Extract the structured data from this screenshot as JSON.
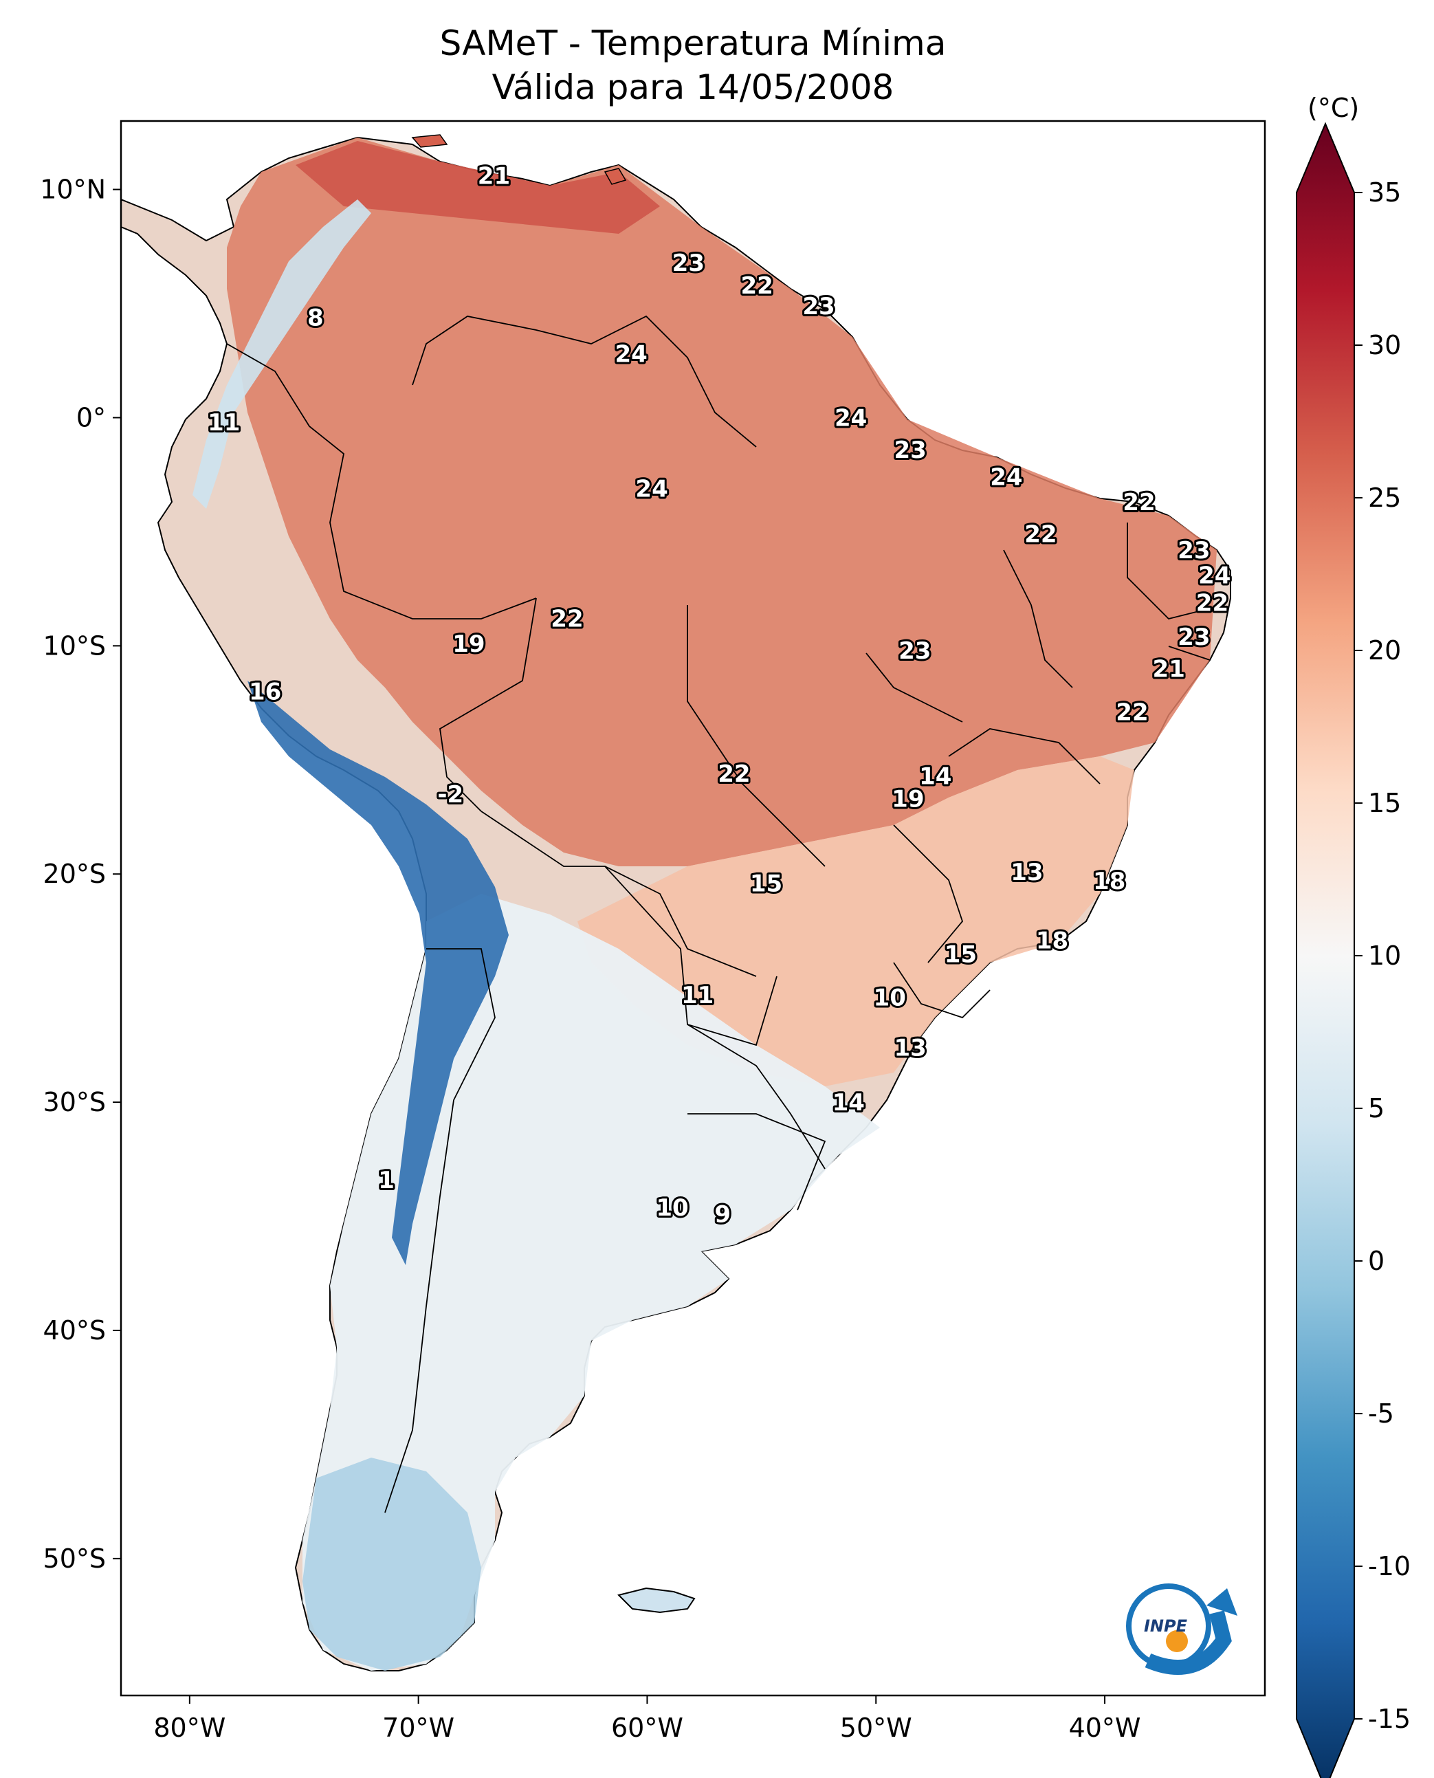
{
  "title": {
    "line1": "SAMeT - Temperatura Mínima",
    "line2": "Válida para 14/05/2008"
  },
  "map": {
    "lon_range": [
      -83,
      -33
    ],
    "lat_range": [
      -56,
      13
    ],
    "lon_ticks": [
      {
        "value": -80,
        "label": "80°W"
      },
      {
        "value": -70,
        "label": "70°W"
      },
      {
        "value": -60,
        "label": "60°W"
      },
      {
        "value": -50,
        "label": "50°W"
      },
      {
        "value": -40,
        "label": "40°W"
      }
    ],
    "lat_ticks": [
      {
        "value": 10,
        "label": "10°N"
      },
      {
        "value": 0,
        "label": "0°"
      },
      {
        "value": -10,
        "label": "10°S"
      },
      {
        "value": -20,
        "label": "20°S"
      },
      {
        "value": -30,
        "label": "30°S"
      },
      {
        "value": -40,
        "label": "40°S"
      },
      {
        "value": -50,
        "label": "50°S"
      }
    ],
    "station_labels": [
      {
        "value": "21",
        "lon": -66.7,
        "lat": 10.6
      },
      {
        "value": "8",
        "lon": -74.5,
        "lat": 4.4
      },
      {
        "value": "11",
        "lon": -78.5,
        "lat": -0.2
      },
      {
        "value": "23",
        "lon": -58.2,
        "lat": 6.8
      },
      {
        "value": "22",
        "lon": -55.2,
        "lat": 5.8
      },
      {
        "value": "23",
        "lon": -52.5,
        "lat": 4.9
      },
      {
        "value": "24",
        "lon": -60.7,
        "lat": 2.8
      },
      {
        "value": "24",
        "lon": -51.1,
        "lat": 0.0
      },
      {
        "value": "23",
        "lon": -48.5,
        "lat": -1.4
      },
      {
        "value": "24",
        "lon": -59.8,
        "lat": -3.1
      },
      {
        "value": "24",
        "lon": -44.3,
        "lat": -2.6
      },
      {
        "value": "22",
        "lon": -38.5,
        "lat": -3.7
      },
      {
        "value": "22",
        "lon": -42.8,
        "lat": -5.1
      },
      {
        "value": "23",
        "lon": -36.1,
        "lat": -5.8
      },
      {
        "value": "24",
        "lon": -35.2,
        "lat": -6.9
      },
      {
        "value": "22",
        "lon": -35.3,
        "lat": -8.1
      },
      {
        "value": "22",
        "lon": -63.5,
        "lat": -8.8
      },
      {
        "value": "19",
        "lon": -67.8,
        "lat": -9.9
      },
      {
        "value": "23",
        "lon": -48.3,
        "lat": -10.2
      },
      {
        "value": "23",
        "lon": -36.1,
        "lat": -9.6
      },
      {
        "value": "21",
        "lon": -37.2,
        "lat": -11.0
      },
      {
        "value": "16",
        "lon": -76.7,
        "lat": -12.0
      },
      {
        "value": "22",
        "lon": -38.8,
        "lat": -12.9
      },
      {
        "value": "22",
        "lon": -56.2,
        "lat": -15.6
      },
      {
        "value": "14",
        "lon": -47.4,
        "lat": -15.7
      },
      {
        "value": "19",
        "lon": -48.6,
        "lat": -16.7
      },
      {
        "value": "-2",
        "lon": -68.6,
        "lat": -16.5
      },
      {
        "value": "15",
        "lon": -54.8,
        "lat": -20.4
      },
      {
        "value": "13",
        "lon": -43.4,
        "lat": -19.9
      },
      {
        "value": "18",
        "lon": -39.8,
        "lat": -20.3
      },
      {
        "value": "18",
        "lon": -42.3,
        "lat": -22.9
      },
      {
        "value": "15",
        "lon": -46.3,
        "lat": -23.5
      },
      {
        "value": "11",
        "lon": -57.8,
        "lat": -25.3
      },
      {
        "value": "10",
        "lon": -49.4,
        "lat": -25.4
      },
      {
        "value": "13",
        "lon": -48.5,
        "lat": -27.6
      },
      {
        "value": "14",
        "lon": -51.2,
        "lat": -30.0
      },
      {
        "value": "1",
        "lon": -71.4,
        "lat": -33.4
      },
      {
        "value": "10",
        "lon": -58.9,
        "lat": -34.6
      },
      {
        "value": "9",
        "lon": -56.7,
        "lat": -34.9
      }
    ]
  },
  "colorbar": {
    "unit_label": "(°C)",
    "min": -15,
    "max": 35,
    "ticks": [
      "35",
      "30",
      "25",
      "20",
      "15",
      "10",
      "5",
      "0",
      "-5",
      "-10",
      "-15"
    ],
    "colormap": "RdBu_r",
    "colors": [
      "#053061",
      "#2166ac",
      "#4393c3",
      "#92c5de",
      "#d1e5f0",
      "#f7f7f7",
      "#fddbc7",
      "#f4a582",
      "#d6604d",
      "#b2182b",
      "#67001f"
    ]
  },
  "logo": {
    "text": "INPE",
    "ring_color": "#1a75bb",
    "dot_color": "#f39a1e"
  }
}
